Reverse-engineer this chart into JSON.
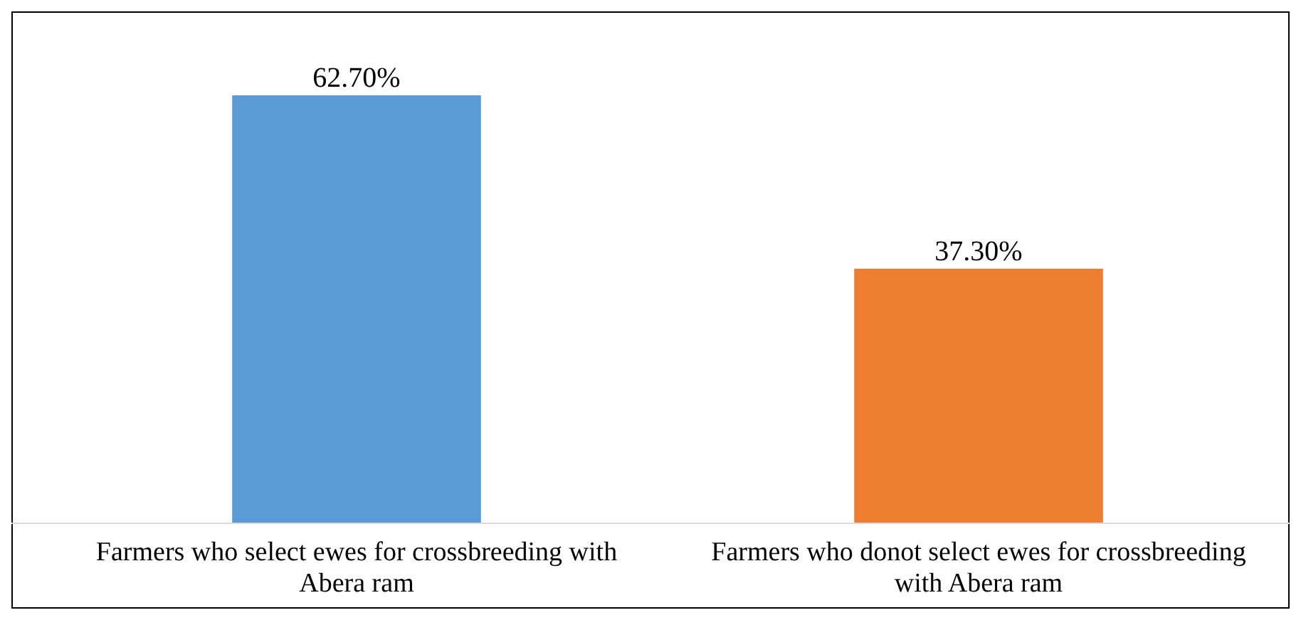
{
  "chart_data": {
    "type": "bar",
    "categories": [
      "Farmers who select ewes for crossbreeding with Abera ram",
      "Farmers who donot select ewes for crossbreeding with Abera ram"
    ],
    "values": [
      62.7,
      37.3
    ],
    "value_labels": [
      "62.70%",
      "37.30%"
    ],
    "colors": [
      "#5b9bd5",
      "#ed7d31"
    ],
    "ylim": [
      0,
      75
    ],
    "tick_labels": "x"
  }
}
